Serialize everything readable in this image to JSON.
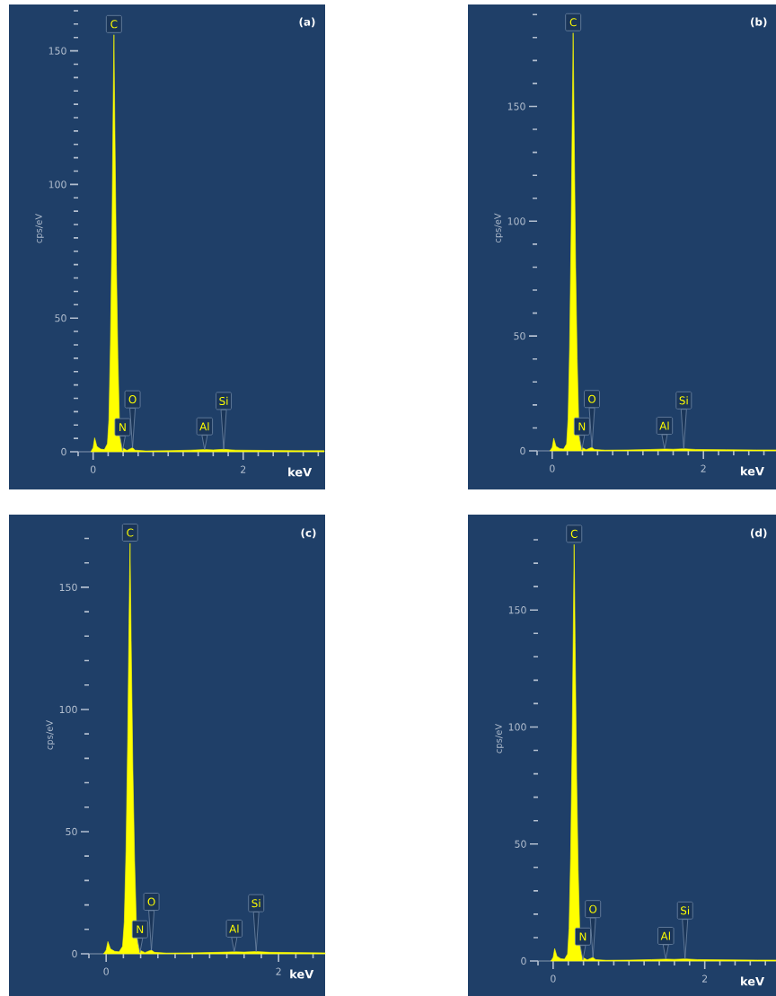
{
  "chart_data": [
    {
      "type": "area",
      "title": "(a)",
      "xlabel": "keV",
      "ylabel": "cps/eV",
      "color": "#ffff00",
      "x": [
        -0.03,
        0,
        0.02,
        0.05,
        0.1,
        0.15,
        0.19,
        0.21,
        0.23,
        0.25,
        0.265,
        0.277,
        0.29,
        0.31,
        0.33,
        0.35,
        0.37,
        0.39,
        0.45,
        0.5,
        0.525,
        0.56,
        0.7,
        1.0,
        1.3,
        1.49,
        1.6,
        1.74,
        1.9,
        2.3,
        2.7,
        3.08
      ],
      "values": [
        0,
        1.5,
        5.2,
        2,
        1,
        0.8,
        3,
        12,
        40,
        80,
        125,
        156,
        120,
        70,
        35,
        12,
        4,
        1.5,
        0.5,
        1.2,
        1.5,
        0.6,
        0.3,
        0.4,
        0.6,
        0.8,
        0.7,
        0.9,
        0.6,
        0.5,
        0.4,
        0.4
      ],
      "xlim": [
        -0.2,
        3.08
      ],
      "ylim": [
        0,
        167
      ],
      "xticks": [
        {
          "value": -0.2,
          "label": null
        },
        0,
        {
          "value": 0.2,
          "label": null
        },
        {
          "value": 0.4,
          "label": null
        },
        {
          "value": 0.6,
          "label": null
        },
        {
          "value": 0.8,
          "label": null
        },
        {
          "value": 1.0,
          "label": null
        },
        {
          "value": 1.2,
          "label": null
        },
        {
          "value": 1.4,
          "label": null
        },
        {
          "value": 1.6,
          "label": null
        },
        {
          "value": 1.8,
          "label": null
        },
        2,
        {
          "value": 2.2,
          "label": null
        },
        {
          "value": 2.4,
          "label": null
        },
        {
          "value": 2.6,
          "label": null
        },
        {
          "value": 2.8,
          "label": null
        },
        {
          "value": 3.0,
          "label": null
        }
      ],
      "yticks": [
        0,
        {
          "value": 5,
          "label": null
        },
        {
          "value": 10,
          "label": null
        },
        {
          "value": 15,
          "label": null
        },
        {
          "value": 20,
          "label": null
        },
        {
          "value": 25,
          "label": null
        },
        {
          "value": 30,
          "label": null
        },
        {
          "value": 35,
          "label": null
        },
        {
          "value": 40,
          "label": null
        },
        {
          "value": 45,
          "label": null
        },
        50,
        {
          "value": 55,
          "label": null
        },
        {
          "value": 60,
          "label": null
        },
        {
          "value": 65,
          "label": null
        },
        {
          "value": 70,
          "label": null
        },
        {
          "value": 75,
          "label": null
        },
        {
          "value": 80,
          "label": null
        },
        {
          "value": 85,
          "label": null
        },
        {
          "value": 90,
          "label": null
        },
        {
          "value": 95,
          "label": null
        },
        100,
        {
          "value": 105,
          "label": null
        },
        {
          "value": 110,
          "label": null
        },
        {
          "value": 115,
          "label": null
        },
        {
          "value": 120,
          "label": null
        },
        {
          "value": 125,
          "label": null
        },
        {
          "value": 130,
          "label": null
        },
        {
          "value": 135,
          "label": null
        },
        {
          "value": 140,
          "label": null
        },
        {
          "value": 145,
          "label": null
        },
        150,
        {
          "value": 155,
          "label": null
        },
        {
          "value": 160,
          "label": null
        },
        {
          "value": 165,
          "label": null
        }
      ],
      "annotations": [
        {
          "text": "C",
          "x": 0.277,
          "y": 156
        },
        {
          "text": "N",
          "x": 0.392,
          "y": 0.5
        },
        {
          "text": "O",
          "x": 0.525,
          "y": 1.5
        },
        {
          "text": "Al",
          "x": 1.486,
          "y": 0.8
        },
        {
          "text": "Si",
          "x": 1.74,
          "y": 0.9
        }
      ]
    },
    {
      "type": "area",
      "title": "(b)",
      "xlabel": "keV",
      "ylabel": "cps/eV",
      "color": "#ffff00",
      "x": [
        -0.03,
        0,
        0.02,
        0.05,
        0.1,
        0.15,
        0.19,
        0.21,
        0.23,
        0.25,
        0.265,
        0.277,
        0.29,
        0.31,
        0.33,
        0.35,
        0.37,
        0.39,
        0.45,
        0.5,
        0.525,
        0.56,
        0.7,
        1.0,
        1.3,
        1.49,
        1.6,
        1.74,
        1.9,
        2.3,
        2.7,
        2.96
      ],
      "values": [
        0,
        1.5,
        5.5,
        2,
        1,
        0.8,
        3,
        14,
        45,
        95,
        145,
        182,
        140,
        80,
        40,
        14,
        4,
        1.5,
        0.5,
        1.2,
        1.5,
        0.6,
        0.3,
        0.4,
        0.6,
        0.8,
        0.7,
        0.9,
        0.6,
        0.5,
        0.4,
        0.4
      ],
      "xlim": [
        -0.2,
        2.96
      ],
      "ylim": [
        0,
        194
      ],
      "xticks": [
        {
          "value": -0.2,
          "label": null
        },
        0,
        {
          "value": 0.2,
          "label": null
        },
        {
          "value": 0.4,
          "label": null
        },
        {
          "value": 0.6,
          "label": null
        },
        {
          "value": 0.8,
          "label": null
        },
        {
          "value": 1.0,
          "label": null
        },
        {
          "value": 1.2,
          "label": null
        },
        {
          "value": 1.4,
          "label": null
        },
        {
          "value": 1.6,
          "label": null
        },
        {
          "value": 1.8,
          "label": null
        },
        2,
        {
          "value": 2.2,
          "label": null
        },
        {
          "value": 2.4,
          "label": null
        },
        {
          "value": 2.6,
          "label": null
        },
        {
          "value": 2.8,
          "label": null
        }
      ],
      "yticks": [
        0,
        {
          "value": 10,
          "label": null
        },
        {
          "value": 20,
          "label": null
        },
        {
          "value": 30,
          "label": null
        },
        {
          "value": 40,
          "label": null
        },
        50,
        {
          "value": 60,
          "label": null
        },
        {
          "value": 70,
          "label": null
        },
        {
          "value": 80,
          "label": null
        },
        {
          "value": 90,
          "label": null
        },
        100,
        {
          "value": 110,
          "label": null
        },
        {
          "value": 120,
          "label": null
        },
        {
          "value": 130,
          "label": null
        },
        {
          "value": 140,
          "label": null
        },
        150,
        {
          "value": 160,
          "label": null
        },
        {
          "value": 170,
          "label": null
        },
        {
          "value": 180,
          "label": null
        },
        {
          "value": 190,
          "label": null
        }
      ],
      "annotations": [
        {
          "text": "C",
          "x": 0.277,
          "y": 182
        },
        {
          "text": "N",
          "x": 0.392,
          "y": 0.5
        },
        {
          "text": "O",
          "x": 0.525,
          "y": 1.5
        },
        {
          "text": "Al",
          "x": 1.486,
          "y": 0.8
        },
        {
          "text": "Si",
          "x": 1.74,
          "y": 0.9
        }
      ]
    },
    {
      "type": "area",
      "title": "(c)",
      "xlabel": "keV",
      "ylabel": "cps/eV",
      "color": "#ffff00",
      "x": [
        -0.03,
        0,
        0.02,
        0.05,
        0.1,
        0.15,
        0.19,
        0.21,
        0.23,
        0.25,
        0.265,
        0.277,
        0.29,
        0.31,
        0.33,
        0.35,
        0.37,
        0.39,
        0.45,
        0.5,
        0.525,
        0.56,
        0.7,
        1.0,
        1.3,
        1.49,
        1.6,
        1.74,
        1.9,
        2.3,
        2.54
      ],
      "values": [
        0,
        1.5,
        5,
        2,
        1,
        0.8,
        3,
        13,
        42,
        88,
        135,
        168,
        128,
        75,
        38,
        13,
        4,
        1.5,
        0.5,
        1.2,
        1.5,
        0.6,
        0.3,
        0.4,
        0.6,
        0.8,
        0.7,
        0.9,
        0.6,
        0.5,
        0.4
      ],
      "xlim": [
        -0.2,
        2.54
      ],
      "ylim": [
        0,
        179
      ],
      "xticks": [
        {
          "value": -0.2,
          "label": null
        },
        0,
        {
          "value": 0.2,
          "label": null
        },
        {
          "value": 0.4,
          "label": null
        },
        {
          "value": 0.6,
          "label": null
        },
        {
          "value": 0.8,
          "label": null
        },
        {
          "value": 1.0,
          "label": null
        },
        {
          "value": 1.2,
          "label": null
        },
        {
          "value": 1.4,
          "label": null
        },
        {
          "value": 1.6,
          "label": null
        },
        {
          "value": 1.8,
          "label": null
        },
        2,
        {
          "value": 2.2,
          "label": null
        },
        {
          "value": 2.4,
          "label": null
        }
      ],
      "yticks": [
        0,
        {
          "value": 10,
          "label": null
        },
        {
          "value": 20,
          "label": null
        },
        {
          "value": 30,
          "label": null
        },
        {
          "value": 40,
          "label": null
        },
        50,
        {
          "value": 60,
          "label": null
        },
        {
          "value": 70,
          "label": null
        },
        {
          "value": 80,
          "label": null
        },
        {
          "value": 90,
          "label": null
        },
        100,
        {
          "value": 110,
          "label": null
        },
        {
          "value": 120,
          "label": null
        },
        {
          "value": 130,
          "label": null
        },
        {
          "value": 140,
          "label": null
        },
        150,
        {
          "value": 160,
          "label": null
        },
        {
          "value": 170,
          "label": null
        }
      ],
      "annotations": [
        {
          "text": "C",
          "x": 0.277,
          "y": 168
        },
        {
          "text": "N",
          "x": 0.392,
          "y": 0.5
        },
        {
          "text": "O",
          "x": 0.525,
          "y": 1.5
        },
        {
          "text": "Al",
          "x": 1.486,
          "y": 0.8
        },
        {
          "text": "Si",
          "x": 1.74,
          "y": 0.9
        }
      ]
    },
    {
      "type": "area",
      "title": "(d)",
      "xlabel": "keV",
      "ylabel": "cps/eV",
      "color": "#ffff00",
      "x": [
        -0.03,
        0,
        0.02,
        0.05,
        0.1,
        0.15,
        0.19,
        0.21,
        0.23,
        0.25,
        0.265,
        0.277,
        0.29,
        0.31,
        0.33,
        0.35,
        0.37,
        0.39,
        0.45,
        0.5,
        0.525,
        0.56,
        0.7,
        1.0,
        1.3,
        1.49,
        1.6,
        1.74,
        1.9,
        2.3,
        2.7,
        2.94
      ],
      "values": [
        0,
        1.5,
        5.3,
        2,
        1,
        0.8,
        3,
        14,
        44,
        92,
        140,
        178,
        136,
        78,
        39,
        14,
        4,
        1.5,
        0.5,
        1.2,
        1.5,
        0.6,
        0.3,
        0.4,
        0.6,
        0.8,
        0.7,
        0.9,
        0.6,
        0.5,
        0.4,
        0.4
      ],
      "xlim": [
        -0.2,
        2.94
      ],
      "ylim": [
        0,
        190
      ],
      "xticks": [
        {
          "value": -0.2,
          "label": null
        },
        0,
        {
          "value": 0.2,
          "label": null
        },
        {
          "value": 0.4,
          "label": null
        },
        {
          "value": 0.6,
          "label": null
        },
        {
          "value": 0.8,
          "label": null
        },
        {
          "value": 1.0,
          "label": null
        },
        {
          "value": 1.2,
          "label": null
        },
        {
          "value": 1.4,
          "label": null
        },
        {
          "value": 1.6,
          "label": null
        },
        {
          "value": 1.8,
          "label": null
        },
        2,
        {
          "value": 2.2,
          "label": null
        },
        {
          "value": 2.4,
          "label": null
        },
        {
          "value": 2.6,
          "label": null
        },
        {
          "value": 2.8,
          "label": null
        }
      ],
      "yticks": [
        0,
        {
          "value": 10,
          "label": null
        },
        {
          "value": 20,
          "label": null
        },
        {
          "value": 30,
          "label": null
        },
        {
          "value": 40,
          "label": null
        },
        50,
        {
          "value": 60,
          "label": null
        },
        {
          "value": 70,
          "label": null
        },
        {
          "value": 80,
          "label": null
        },
        {
          "value": 90,
          "label": null
        },
        100,
        {
          "value": 110,
          "label": null
        },
        {
          "value": 120,
          "label": null
        },
        {
          "value": 130,
          "label": null
        },
        {
          "value": 140,
          "label": null
        },
        150,
        {
          "value": 160,
          "label": null
        },
        {
          "value": 170,
          "label": null
        },
        {
          "value": 180,
          "label": null
        }
      ],
      "annotations": [
        {
          "text": "C",
          "x": 0.277,
          "y": 178
        },
        {
          "text": "N",
          "x": 0.392,
          "y": 0.5
        },
        {
          "text": "O",
          "x": 0.525,
          "y": 1.5
        },
        {
          "text": "Al",
          "x": 1.486,
          "y": 0.8
        },
        {
          "text": "Si",
          "x": 1.74,
          "y": 0.9
        }
      ]
    }
  ]
}
